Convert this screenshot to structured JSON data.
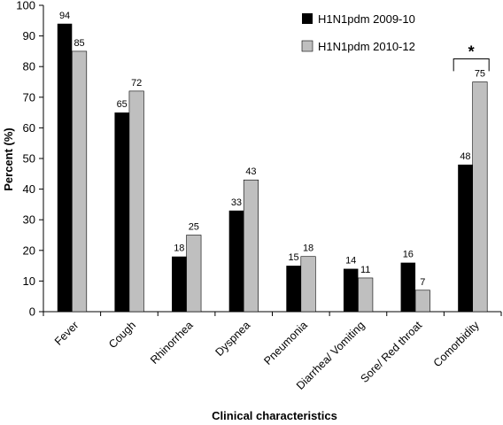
{
  "chart_data": {
    "type": "bar",
    "categories": [
      "Fever",
      "Cough",
      "Rhinorrhea",
      "Dyspnea",
      "Pneumonia",
      "Diarrhea/ Vomiting",
      "Sore/ Red throat",
      "Comorbidity"
    ],
    "series": [
      {
        "name": "H1N1pdm 2009-10",
        "values": [
          94,
          65,
          18,
          33,
          15,
          14,
          16,
          48
        ],
        "labels": [
          "94",
          "65",
          "18",
          "33",
          "15",
          "14",
          "16",
          "48"
        ],
        "color": "#000000"
      },
      {
        "name": "H1N1pdm 2010-12",
        "values": [
          85,
          72,
          25,
          43,
          18,
          11,
          7,
          75
        ],
        "labels": [
          "85",
          "72",
          "25",
          "43",
          "18",
          "11",
          "7",
          "75"
        ],
        "color": "#bfbfbf"
      }
    ],
    "xlabel": "Clinical characteristics",
    "ylabel": "Percent  (%)",
    "ylim": [
      0,
      100
    ],
    "yticks": [
      0,
      10,
      20,
      30,
      40,
      50,
      60,
      70,
      80,
      90,
      100
    ],
    "grid": false,
    "legend_position": "top-right",
    "annotation": {
      "text": "*",
      "category": "Comorbidity"
    }
  }
}
